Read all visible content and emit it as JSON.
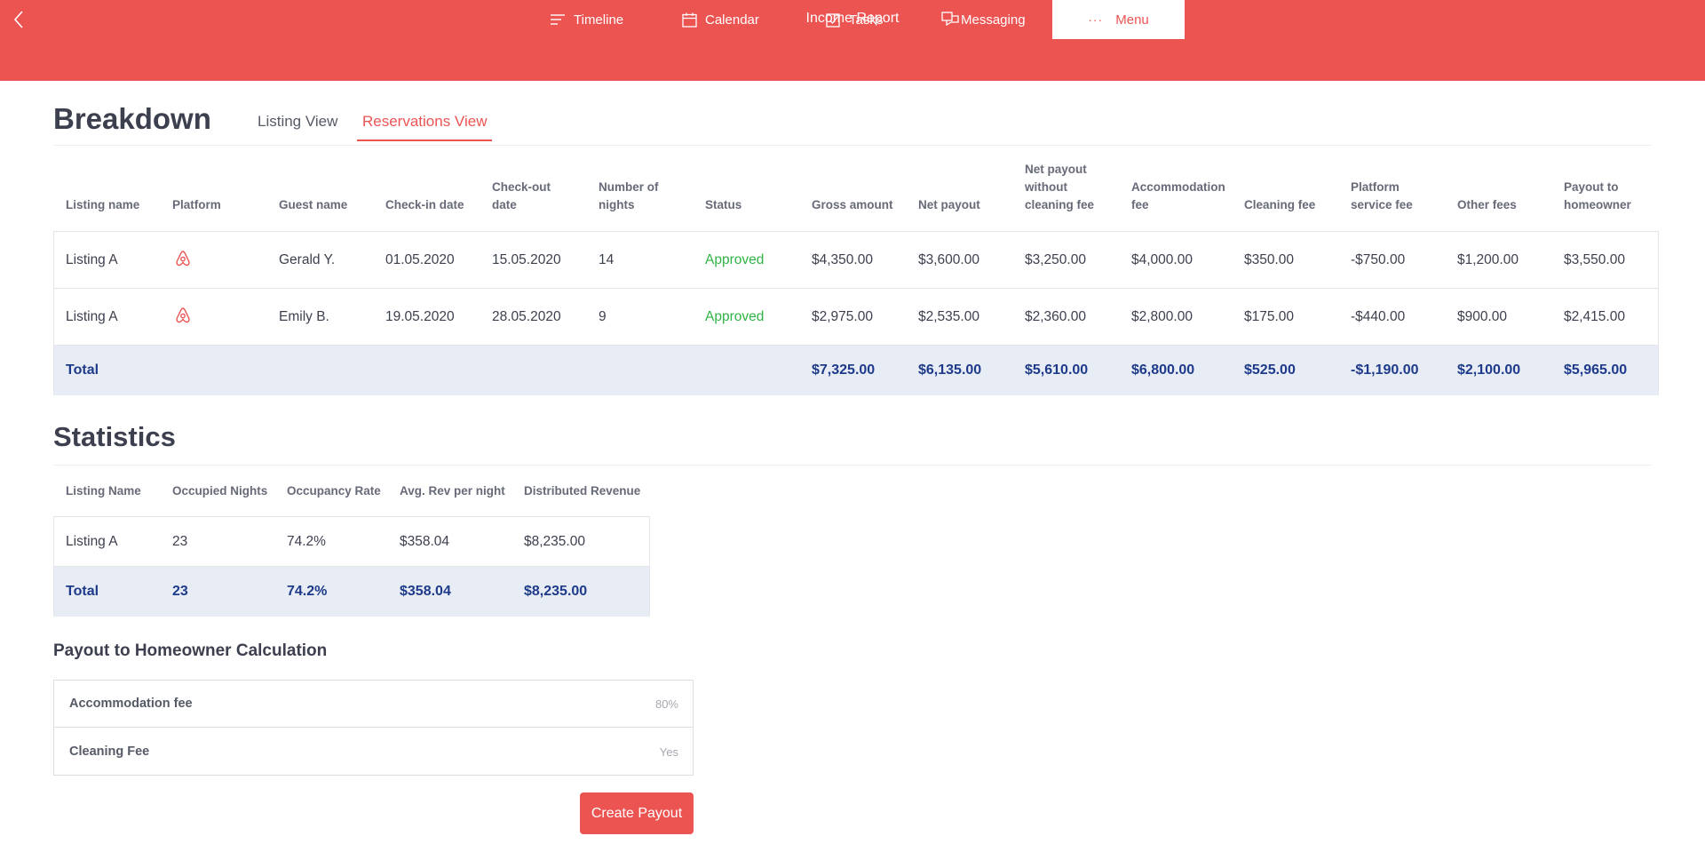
{
  "header": {
    "title": "Income Report",
    "nav": [
      {
        "label": "Timeline",
        "icon": "timeline-icon"
      },
      {
        "label": "Calendar",
        "icon": "calendar-icon"
      },
      {
        "label": "Tasks",
        "icon": "tasks-icon"
      },
      {
        "label": "Messaging",
        "icon": "messaging-icon"
      },
      {
        "label": "Menu",
        "icon": "more-icon",
        "active": true
      }
    ]
  },
  "breakdown": {
    "title": "Breakdown",
    "tabs": [
      {
        "label": "Listing View",
        "active": false
      },
      {
        "label": "Reservations View",
        "active": true
      }
    ],
    "columns": {
      "listing_name": "Listing name",
      "platform": "Platform",
      "guest_name": "Guest name",
      "checkin_line1": "Check-in date",
      "checkout_line1": "Check-out",
      "checkout_line2": "date",
      "nights_line1": "Number of",
      "nights_line2": "nights",
      "status": "Status",
      "gross": "Gross amount",
      "net": "Net payout",
      "netnc_line1": "Net payout",
      "netnc_line2": "without",
      "netnc_line3": "cleaning fee",
      "accom_line1": "Accommodation",
      "accom_line2": "fee",
      "cleaning": "Cleaning fee",
      "psf_line1": "Platform",
      "psf_line2": "service fee",
      "other": "Other fees",
      "payout_line1": "Payout to",
      "payout_line2": "homeowner"
    },
    "rows": [
      {
        "listing": "Listing A",
        "platform": "airbnb-icon",
        "guest": "Gerald Y.",
        "checkin": "01.05.2020",
        "checkout": "15.05.2020",
        "nights": "14",
        "status": "Approved",
        "gross": "$4,350.00",
        "net": "$3,600.00",
        "net_no_cleaning": "$3,250.00",
        "accommodation": "$4,000.00",
        "cleaning": "$350.00",
        "platform_fee": "-$750.00",
        "other": "$1,200.00",
        "payout": "$3,550.00"
      },
      {
        "listing": "Listing A",
        "platform": "airbnb-icon",
        "guest": "Emily B.",
        "checkin": "19.05.2020",
        "checkout": "28.05.2020",
        "nights": "9",
        "status": "Approved",
        "gross": "$2,975.00",
        "net": "$2,535.00",
        "net_no_cleaning": "$2,360.00",
        "accommodation": "$2,800.00",
        "cleaning": "$175.00",
        "platform_fee": "-$440.00",
        "other": "$900.00",
        "payout": "$2,415.00"
      }
    ],
    "total": {
      "label": "Total",
      "gross": "$7,325.00",
      "net": "$6,135.00",
      "net_no_cleaning": "$5,610.00",
      "accommodation": "$6,800.00",
      "cleaning": "$525.00",
      "platform_fee": "-$1,190.00",
      "other": "$2,100.00",
      "payout": "$5,965.00"
    }
  },
  "statistics": {
    "title": "Statistics",
    "columns": {
      "listing": "Listing Name",
      "nights": "Occupied Nights",
      "rate": "Occupancy Rate",
      "avg": "Avg. Rev per night",
      "revenue": "Distributed Revenue"
    },
    "rows": [
      {
        "listing": "Listing A",
        "nights": "23",
        "rate": "74.2%",
        "avg": "$358.04",
        "revenue": "$8,235.00"
      }
    ],
    "total": {
      "label": "Total",
      "nights": "23",
      "rate": "74.2%",
      "avg": "$358.04",
      "revenue": "$8,235.00"
    }
  },
  "payout_calc": {
    "title": "Payout to Homeowner Calculation",
    "items": [
      {
        "label": "Accommodation fee",
        "value": "80%"
      },
      {
        "label": "Cleaning Fee",
        "value": "Yes"
      }
    ],
    "button": "Create Payout"
  },
  "colors": {
    "brand": "#ec5452",
    "approved": "#2fb344",
    "total_text": "#1e3a8a",
    "total_bg": "#e8ecf5"
  }
}
